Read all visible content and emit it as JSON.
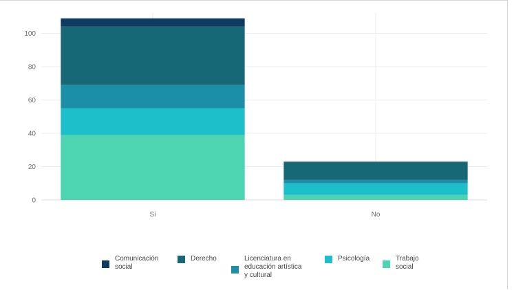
{
  "chart_data": {
    "type": "bar",
    "stacked": true,
    "categories": [
      "Si",
      "No"
    ],
    "ylim": [
      0,
      110
    ],
    "yticks": [
      0,
      20,
      40,
      60,
      80,
      100
    ],
    "grid": true,
    "legend_position": "bottom",
    "series": [
      {
        "name": "Trabajo social",
        "color": "#4dd4b0",
        "values": [
          39,
          3
        ]
      },
      {
        "name": "Psicología",
        "color": "#1dbfca",
        "values": [
          16,
          7
        ]
      },
      {
        "name": "Licenciatura en educación artística y cultural",
        "color": "#1c8fa7",
        "values": [
          14,
          2
        ]
      },
      {
        "name": "Derecho",
        "color": "#176876",
        "values": [
          35,
          11
        ]
      },
      {
        "name": "Comunicación social",
        "color": "#0f3b61",
        "values": [
          5,
          0
        ]
      }
    ]
  },
  "legend": {
    "items": [
      {
        "lines": [
          "Comunicación",
          "social"
        ],
        "color": "#0f3b61"
      },
      {
        "lines": [
          "Derecho"
        ],
        "color": "#176876"
      },
      {
        "lines": [
          "Licenciatura en",
          "educación artística",
          "y cultural"
        ],
        "color": "#1c8fa7"
      },
      {
        "lines": [
          "Psicología"
        ],
        "color": "#1dbfca"
      },
      {
        "lines": [
          "Trabajo",
          "social"
        ],
        "color": "#4dd4b0"
      }
    ]
  }
}
